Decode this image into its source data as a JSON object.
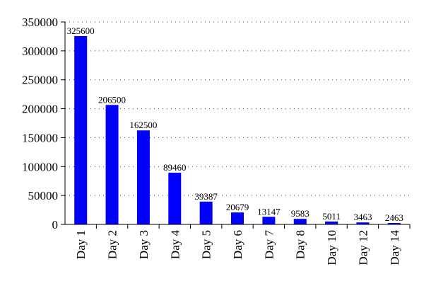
{
  "chart_data": {
    "type": "bar",
    "title": "",
    "xlabel": "",
    "ylabel": "",
    "categories": [
      "Day 1",
      "Day 2",
      "Day 3",
      "Day 4",
      "Day 5",
      "Day 6",
      "Day 7",
      "Day 8",
      "Day 10",
      "Day 12",
      "Day 14"
    ],
    "values": [
      325600,
      206500,
      162500,
      89460,
      39387,
      20679,
      13147,
      9583,
      5011,
      3463,
      2463
    ],
    "data_labels": [
      "325600",
      "206500",
      "162500",
      "89460",
      "39387",
      "20679",
      "13147",
      "9583",
      "5011",
      "3463",
      "2463"
    ],
    "ylim": [
      0,
      350000
    ],
    "yticks": [
      0,
      50000,
      100000,
      150000,
      200000,
      250000,
      300000,
      350000
    ],
    "ytick_labels": [
      "0",
      "50000",
      "100000",
      "150000",
      "200000",
      "250000",
      "300000",
      "350000"
    ],
    "grid": true,
    "grid_style": "dotted horizontal",
    "legend": "none",
    "bar_color": "#0000ff"
  }
}
